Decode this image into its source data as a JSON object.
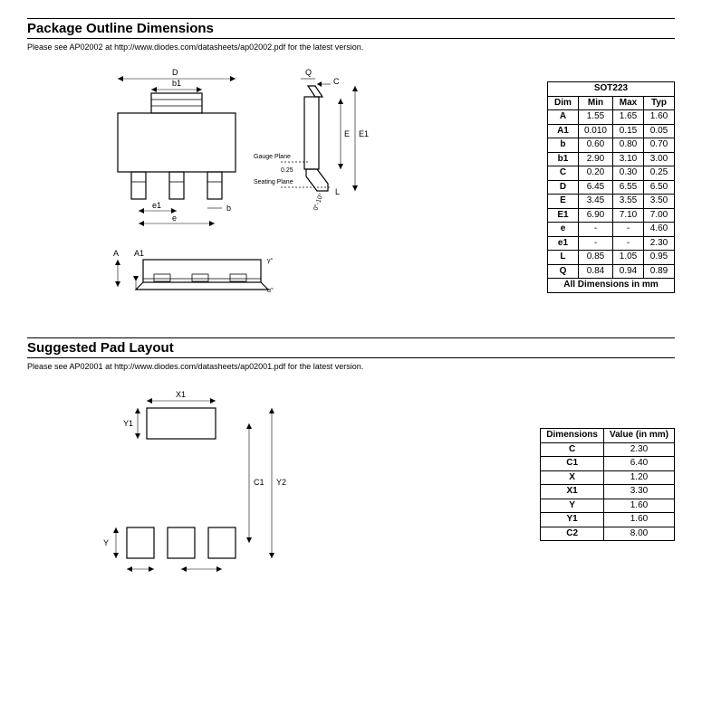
{
  "section1": {
    "title": "Package Outline Dimensions",
    "note": "Please see AP02002 at http://www.diodes.com/datasheets/ap02002.pdf for the latest version.",
    "table": {
      "header": "SOT223",
      "columns": [
        "Dim",
        "Min",
        "Max",
        "Typ"
      ],
      "rows": [
        [
          "A",
          "1.55",
          "1.65",
          "1.60"
        ],
        [
          "A1",
          "0.010",
          "0.15",
          "0.05"
        ],
        [
          "b",
          "0.60",
          "0.80",
          "0.70"
        ],
        [
          "b1",
          "2.90",
          "3.10",
          "3.00"
        ],
        [
          "C",
          "0.20",
          "0.30",
          "0.25"
        ],
        [
          "D",
          "6.45",
          "6.55",
          "6.50"
        ],
        [
          "E",
          "3.45",
          "3.55",
          "3.50"
        ],
        [
          "E1",
          "6.90",
          "7.10",
          "7.00"
        ],
        [
          "e",
          "-",
          "-",
          "4.60"
        ],
        [
          "e1",
          "-",
          "-",
          "2.30"
        ],
        [
          "L",
          "0.85",
          "1.05",
          "0.95"
        ],
        [
          "Q",
          "0.84",
          "0.94",
          "0.89"
        ]
      ],
      "footer": "All Dimensions in mm"
    },
    "diagram_labels": {
      "D": "D",
      "b1": "b1",
      "Q": "Q",
      "C": "C",
      "E": "E",
      "E1": "E1",
      "gauge": "Gauge Plane",
      "val025": "0.25",
      "seating": "Seating Plane",
      "L": "L",
      "ang": "0°-10°",
      "e1": "e1",
      "b": "b",
      "e": "e",
      "A": "A",
      "A1": "A1",
      "gamma": "γ°",
      "alpha": "α°"
    }
  },
  "section2": {
    "title": "Suggested Pad Layout",
    "note": "Please see AP02001 at http://www.diodes.com/datasheets/ap02001.pdf for the latest version.",
    "table": {
      "columns": [
        "Dimensions",
        "Value (in mm)"
      ],
      "rows": [
        [
          "C",
          "2.30"
        ],
        [
          "C1",
          "6.40"
        ],
        [
          "X",
          "1.20"
        ],
        [
          "X1",
          "3.30"
        ],
        [
          "Y",
          "1.60"
        ],
        [
          "Y1",
          "1.60"
        ],
        [
          "C2",
          "8.00"
        ]
      ]
    },
    "diagram_labels": {
      "X1": "X1",
      "Y1": "Y1",
      "C1": "C1",
      "Y2": "Y2",
      "Y": "Y",
      "X": "X",
      "C": "C"
    }
  }
}
